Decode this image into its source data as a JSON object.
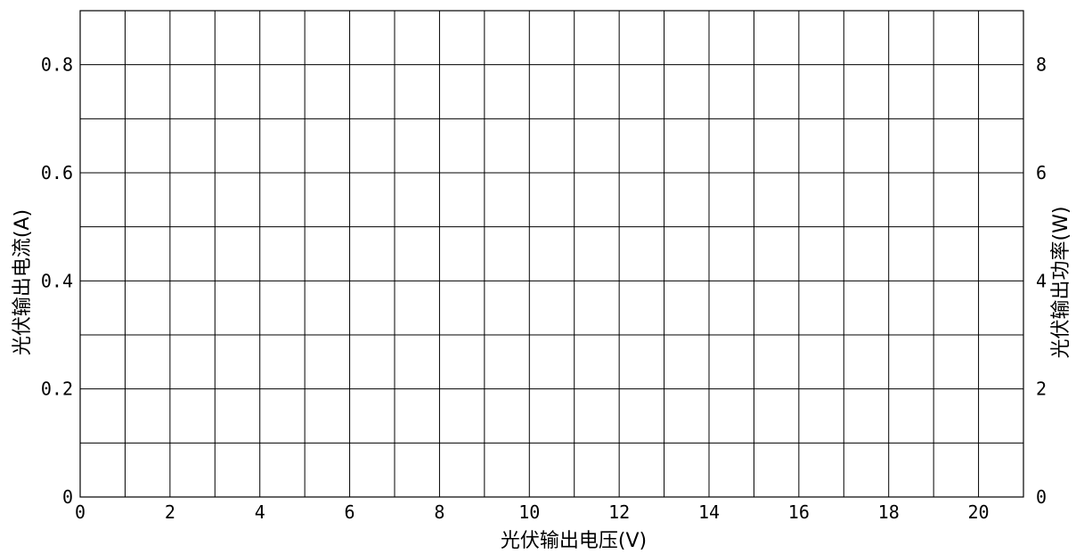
{
  "chart_data": {
    "type": "line",
    "title": "",
    "xlabel": "光伏输出电压(V)",
    "ylabel_left": "光伏输出电流(A)",
    "ylabel_right": "光伏输出功率(W)",
    "xlim": [
      0,
      21
    ],
    "ylim_left": [
      0,
      0.9
    ],
    "ylim_right": [
      0,
      9
    ],
    "x_ticks": [
      0,
      2,
      4,
      6,
      8,
      10,
      12,
      14,
      16,
      18,
      20
    ],
    "x_tick_labels": [
      "0",
      "2",
      "4",
      "6",
      "8",
      "10",
      "12",
      "14",
      "16",
      "18",
      "20"
    ],
    "y_left_ticks": [
      0,
      0.2,
      0.4,
      0.6,
      0.8
    ],
    "y_left_tick_labels": [
      "0",
      "0.2",
      "0.4",
      "0.6",
      "0.8"
    ],
    "y_right_ticks": [
      0,
      2,
      4,
      6,
      8
    ],
    "y_right_tick_labels": [
      "0",
      "2",
      "4",
      "6",
      "8"
    ],
    "x_grid_step": 1,
    "y_grid_step": 0.1,
    "grid": true,
    "series": []
  }
}
